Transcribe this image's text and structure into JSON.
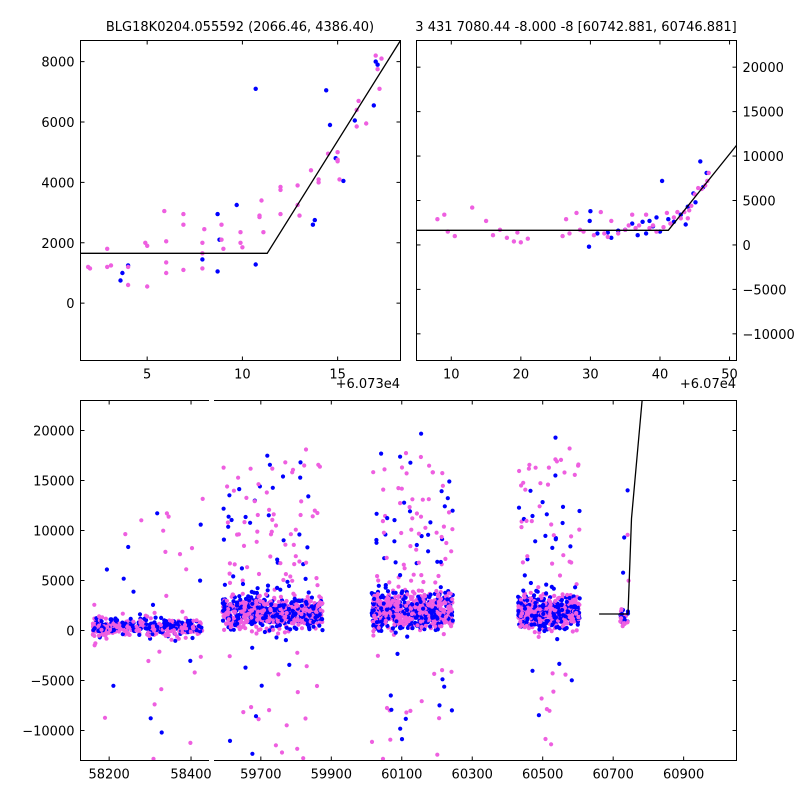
{
  "chart_data": [
    {
      "panel": "top-left",
      "type": "scatter",
      "title": "BLG18K0204.055592 (2066.46, 4386.40)",
      "x_offset_text": "+6.073e4",
      "xlim": [
        1.5,
        18.3
      ],
      "ylim": [
        -1900,
        8700
      ],
      "xticks": [
        5,
        10,
        15
      ],
      "xtick_labels": [
        "5",
        "10",
        "15"
      ],
      "yticks": [
        0,
        2000,
        4000,
        6000,
        8000
      ],
      "ytick_labels": [
        "0",
        "2000",
        "4000",
        "6000",
        "8000"
      ],
      "yaxis_side": "left",
      "model_line": {
        "x": [
          1.5,
          11.3,
          18.3
        ],
        "y": [
          1650,
          1650,
          8700
        ]
      },
      "series": [
        {
          "name": "blue",
          "color": "#0000ff",
          "points": [
            [
              3.7,
              1000
            ],
            [
              3.6,
              750
            ],
            [
              4.0,
              1250
            ],
            [
              7.9,
              1450
            ],
            [
              8.7,
              2950
            ],
            [
              8.8,
              2100
            ],
            [
              9.7,
              3250
            ],
            [
              8.7,
              1050
            ],
            [
              10.7,
              7100
            ],
            [
              10.7,
              1280
            ],
            [
              13.7,
              2600
            ],
            [
              13.8,
              2750
            ],
            [
              14.4,
              7050
            ],
            [
              14.6,
              5900
            ],
            [
              15.3,
              4050
            ],
            [
              15.9,
              6050
            ],
            [
              16.9,
              6550
            ],
            [
              17.0,
              8000
            ],
            [
              17.1,
              7900
            ],
            [
              14.9,
              4800
            ]
          ]
        },
        {
          "name": "pink",
          "color": "#ee5fe0",
          "points": [
            [
              1.9,
              1200
            ],
            [
              2.0,
              1150
            ],
            [
              2.9,
              1800
            ],
            [
              2.9,
              1200
            ],
            [
              3.1,
              1250
            ],
            [
              4.0,
              1200
            ],
            [
              4.0,
              600
            ],
            [
              4.9,
              2000
            ],
            [
              5.0,
              1900
            ],
            [
              5.0,
              550
            ],
            [
              5.9,
              3050
            ],
            [
              6.0,
              2050
            ],
            [
              6.0,
              1350
            ],
            [
              6.0,
              1000
            ],
            [
              6.9,
              2950
            ],
            [
              6.9,
              2600
            ],
            [
              6.9,
              1100
            ],
            [
              7.9,
              2000
            ],
            [
              7.9,
              1650
            ],
            [
              7.9,
              1150
            ],
            [
              8.0,
              2450
            ],
            [
              8.9,
              2600
            ],
            [
              8.9,
              2100
            ],
            [
              9.0,
              1800
            ],
            [
              9.9,
              2350
            ],
            [
              9.9,
              2000
            ],
            [
              10.0,
              1850
            ],
            [
              10.9,
              2900
            ],
            [
              10.9,
              2850
            ],
            [
              11.0,
              3400
            ],
            [
              11.1,
              2350
            ],
            [
              12.0,
              3850
            ],
            [
              12.0,
              3750
            ],
            [
              12.0,
              2950
            ],
            [
              12.9,
              3900
            ],
            [
              12.9,
              3250
            ],
            [
              13.0,
              2900
            ],
            [
              14.0,
              4100
            ],
            [
              14.0,
              4000
            ],
            [
              15.0,
              5000
            ],
            [
              15.0,
              4750
            ],
            [
              15.0,
              4700
            ],
            [
              15.1,
              4100
            ],
            [
              16.0,
              5850
            ],
            [
              16.0,
              6400
            ],
            [
              16.1,
              6700
            ],
            [
              17.0,
              8200
            ],
            [
              17.1,
              7750
            ],
            [
              17.2,
              7100
            ],
            [
              17.3,
              8100
            ],
            [
              14.5,
              4950
            ],
            [
              16.5,
              5950
            ],
            [
              13.6,
              4400
            ]
          ]
        }
      ]
    },
    {
      "panel": "top-right",
      "type": "scatter",
      "title": "3 431 7080.44 -8.000 -8 [60742.881, 60746.881]",
      "x_offset_text": "+6.07e4",
      "xlim": [
        5,
        51
      ],
      "ylim": [
        -13000,
        23000
      ],
      "xticks": [
        10,
        20,
        30,
        40,
        50
      ],
      "xtick_labels": [
        "10",
        "20",
        "30",
        "40",
        "50"
      ],
      "yticks": [
        -10000,
        -5000,
        0,
        5000,
        10000,
        15000,
        20000
      ],
      "ytick_labels": [
        "−10000",
        "−5000",
        "0",
        "5000",
        "10000",
        "15000",
        "20000"
      ],
      "yaxis_side": "right",
      "model_line": {
        "x": [
          5,
          41.2,
          51
        ],
        "y": [
          1650,
          1650,
          11200
        ]
      },
      "series": [
        {
          "name": "blue",
          "color": "#0000ff",
          "points": [
            [
              30.0,
              3800
            ],
            [
              29.9,
              2700
            ],
            [
              31.0,
              1300
            ],
            [
              32.5,
              1400
            ],
            [
              34.0,
              1600
            ],
            [
              36.0,
              2400
            ],
            [
              37.5,
              2600
            ],
            [
              38.5,
              2700
            ],
            [
              39.5,
              3100
            ],
            [
              40.0,
              1500
            ],
            [
              40.3,
              7200
            ],
            [
              41.2,
              2900
            ],
            [
              42.0,
              2600
            ],
            [
              43.0,
              3400
            ],
            [
              43.7,
              2300
            ],
            [
              44.8,
              5800
            ],
            [
              45.1,
              4800
            ],
            [
              45.8,
              9400
            ],
            [
              46.7,
              8100
            ],
            [
              29.8,
              -200
            ],
            [
              33.0,
              800
            ],
            [
              35.0,
              1700
            ],
            [
              36.8,
              1100
            ],
            [
              38.0,
              1300
            ],
            [
              39.0,
              2100
            ],
            [
              44.0,
              4300
            ],
            [
              46.2,
              6500
            ]
          ]
        },
        {
          "name": "pink",
          "color": "#ee5fe0",
          "points": [
            [
              8.0,
              2900
            ],
            [
              9.0,
              3400
            ],
            [
              9.5,
              1500
            ],
            [
              10.5,
              1000
            ],
            [
              13.0,
              4200
            ],
            [
              15.0,
              2700
            ],
            [
              16.0,
              1100
            ],
            [
              17.0,
              1700
            ],
            [
              18.0,
              800
            ],
            [
              19.0,
              400
            ],
            [
              19.5,
              1400
            ],
            [
              20.0,
              300
            ],
            [
              21.0,
              700
            ],
            [
              26.0,
              1000
            ],
            [
              26.5,
              2900
            ],
            [
              27.0,
              1300
            ],
            [
              28.0,
              3600
            ],
            [
              28.5,
              1700
            ],
            [
              29.0,
              1500
            ],
            [
              30.5,
              1100
            ],
            [
              31.5,
              3700
            ],
            [
              32.0,
              1300
            ],
            [
              32.5,
              900
            ],
            [
              33.0,
              2700
            ],
            [
              34.0,
              1300
            ],
            [
              35.0,
              1700
            ],
            [
              35.5,
              2200
            ],
            [
              36.0,
              3400
            ],
            [
              36.5,
              1900
            ],
            [
              37.0,
              2200
            ],
            [
              38.0,
              3400
            ],
            [
              38.5,
              1900
            ],
            [
              39.0,
              2200
            ],
            [
              39.5,
              1500
            ],
            [
              40.5,
              2000
            ],
            [
              41.0,
              3600
            ],
            [
              41.5,
              2400
            ],
            [
              42.0,
              3100
            ],
            [
              42.5,
              3700
            ],
            [
              43.0,
              3000
            ],
            [
              43.5,
              3700
            ],
            [
              44.0,
              3000
            ],
            [
              44.5,
              4400
            ],
            [
              45.0,
              5700
            ],
            [
              45.5,
              6400
            ],
            [
              46.0,
              6300
            ],
            [
              46.5,
              6700
            ],
            [
              47.0,
              8100
            ],
            [
              46.8,
              7200
            ],
            [
              44.2,
              3900
            ]
          ]
        }
      ]
    },
    {
      "panel": "bottom",
      "type": "scatter",
      "title": "",
      "segments": [
        {
          "name": "segment-1",
          "xlim": [
            58130,
            58450
          ],
          "xticks": [
            58200,
            58400
          ],
          "xtick_labels": [
            "58200",
            "58400"
          ],
          "clusters": [
            [
              58160,
              58430
            ]
          ]
        },
        {
          "name": "segment-2",
          "xlim": [
            59560,
            61050
          ],
          "xticks": [
            59700,
            59900,
            60100,
            60300,
            60500,
            60700,
            60900
          ],
          "xtick_labels": [
            "59700",
            "59900",
            "60100",
            "60300",
            "60500",
            "60700",
            "60900"
          ],
          "clusters": [
            [
              59590,
              59875
            ],
            [
              60015,
              60245
            ],
            [
              60430,
              60605
            ],
            [
              60720,
              60745
            ]
          ]
        }
      ],
      "ylim": [
        -13000,
        23000
      ],
      "yticks": [
        -10000,
        -5000,
        0,
        5000,
        10000,
        15000,
        20000
      ],
      "ytick_labels": [
        "−10000",
        "−5000",
        "0",
        "5000",
        "10000",
        "15000",
        "20000"
      ],
      "yaxis_side": "left",
      "model_line": {
        "x": [
          60660,
          60742,
          60752,
          60782
        ],
        "y": [
          1650,
          1650,
          11200,
          23000
        ]
      },
      "series": [
        {
          "name": "blue",
          "color": "#0000ff"
        },
        {
          "name": "pink",
          "color": "#ee5fe0"
        }
      ]
    }
  ]
}
